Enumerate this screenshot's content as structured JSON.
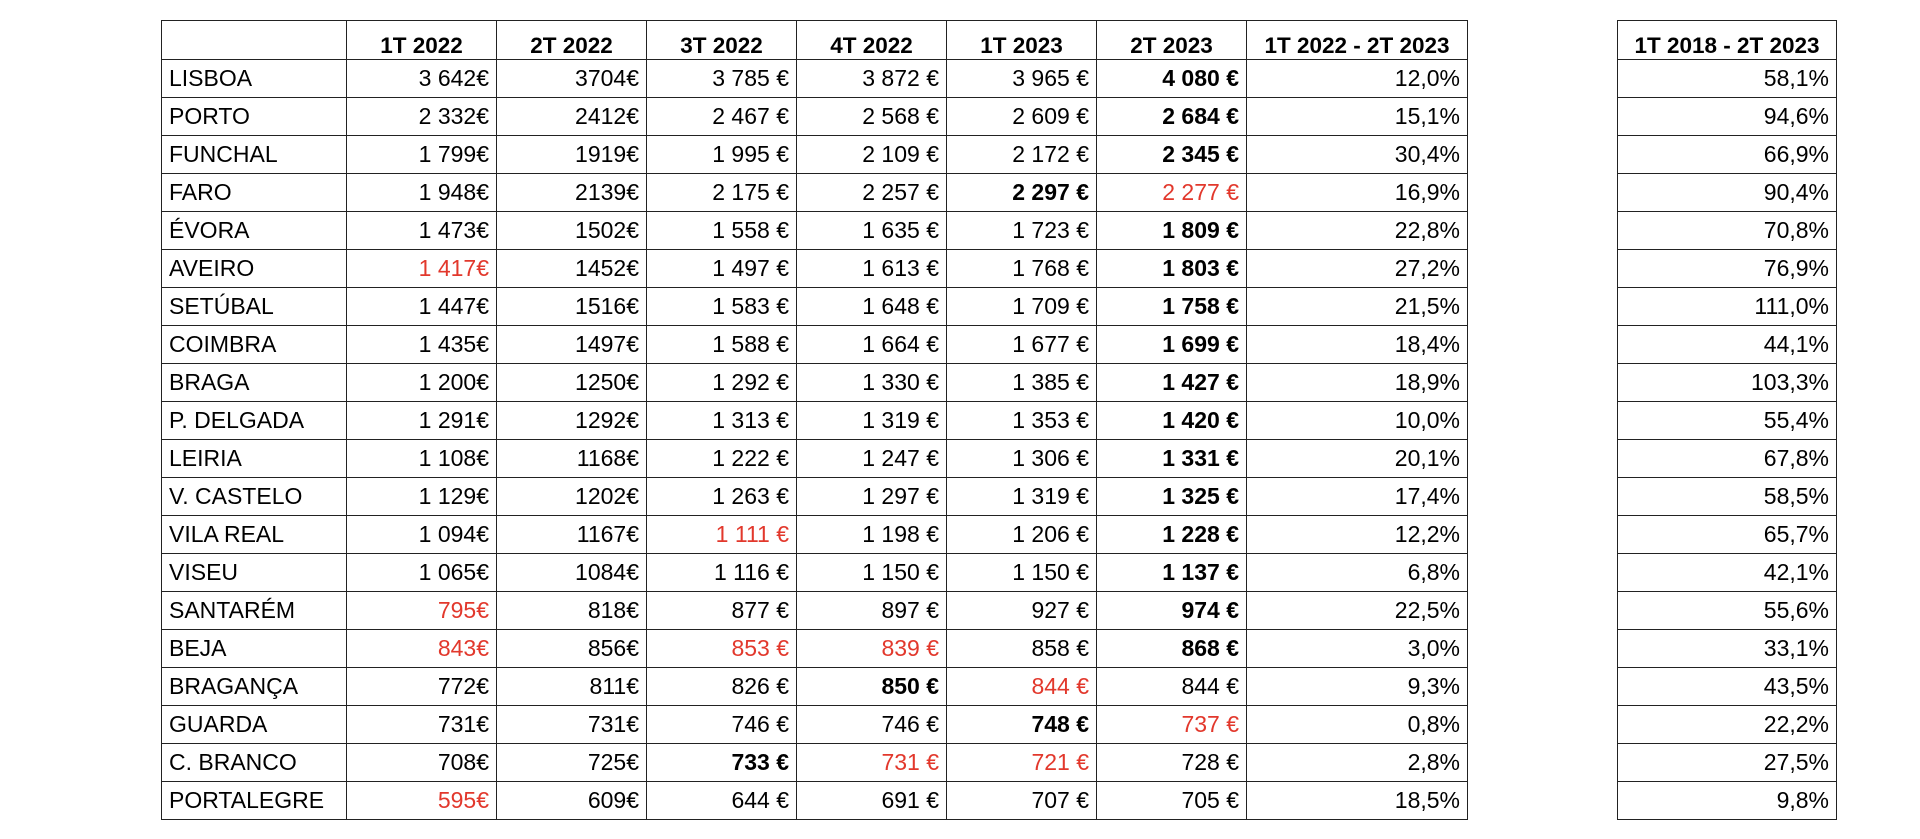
{
  "colors": {
    "red_text": "#e2382c",
    "text": "#000000",
    "border": "#222222"
  },
  "main_table": {
    "headers": [
      "",
      "1T 2022",
      "2T 2022",
      "3T 2022",
      "4T 2022",
      "1T 2023",
      "2T 2023",
      "1T 2022 - 2T 2023"
    ],
    "rows": [
      {
        "city": "LISBOA",
        "values": [
          "3 642€",
          "3704€",
          "3 785 €",
          "3 872 €",
          "3 965 €",
          "4 080 €",
          "12,0%"
        ],
        "bold": [
          5
        ],
        "red": []
      },
      {
        "city": "PORTO",
        "values": [
          "2 332€",
          "2412€",
          "2 467 €",
          "2 568 €",
          "2 609 €",
          "2 684 €",
          "15,1%"
        ],
        "bold": [
          5
        ],
        "red": []
      },
      {
        "city": "FUNCHAL",
        "values": [
          "1 799€",
          "1919€",
          "1 995 €",
          "2 109 €",
          "2 172 €",
          "2 345 €",
          "30,4%"
        ],
        "bold": [
          5
        ],
        "red": []
      },
      {
        "city": "FARO",
        "values": [
          "1 948€",
          "2139€",
          "2 175 €",
          "2 257 €",
          "2 297 €",
          "2 277 €",
          "16,9%"
        ],
        "bold": [
          4
        ],
        "red": [
          5
        ]
      },
      {
        "city": "ÉVORA",
        "values": [
          "1 473€",
          "1502€",
          "1 558 €",
          "1 635 €",
          "1 723 €",
          "1 809 €",
          "22,8%"
        ],
        "bold": [
          5
        ],
        "red": []
      },
      {
        "city": "AVEIRO",
        "values": [
          "1 417€",
          "1452€",
          "1 497 €",
          "1 613 €",
          "1 768 €",
          "1 803 €",
          "27,2%"
        ],
        "bold": [
          5
        ],
        "red": [
          0
        ]
      },
      {
        "city": "SETÚBAL",
        "values": [
          "1 447€",
          "1516€",
          "1 583 €",
          "1 648 €",
          "1 709 €",
          "1 758 €",
          "21,5%"
        ],
        "bold": [
          5
        ],
        "red": []
      },
      {
        "city": "COIMBRA",
        "values": [
          "1 435€",
          "1497€",
          "1 588 €",
          "1 664 €",
          "1 677 €",
          "1 699 €",
          "18,4%"
        ],
        "bold": [
          5
        ],
        "red": []
      },
      {
        "city": "BRAGA",
        "values": [
          "1 200€",
          "1250€",
          "1 292 €",
          "1 330 €",
          "1 385 €",
          "1 427 €",
          "18,9%"
        ],
        "bold": [
          5
        ],
        "red": []
      },
      {
        "city": "P. DELGADA",
        "values": [
          "1 291€",
          "1292€",
          "1 313 €",
          "1 319 €",
          "1 353 €",
          "1 420 €",
          "10,0%"
        ],
        "bold": [
          5
        ],
        "red": []
      },
      {
        "city": "LEIRIA",
        "values": [
          "1 108€",
          "1168€",
          "1 222 €",
          "1 247 €",
          "1 306 €",
          "1 331 €",
          "20,1%"
        ],
        "bold": [
          5
        ],
        "red": []
      },
      {
        "city": "V. CASTELO",
        "values": [
          "1 129€",
          "1202€",
          "1 263 €",
          "1 297 €",
          "1 319 €",
          "1 325 €",
          "17,4%"
        ],
        "bold": [
          5
        ],
        "red": []
      },
      {
        "city": "VILA REAL",
        "values": [
          "1 094€",
          "1167€",
          "1 111 €",
          "1 198 €",
          "1 206 €",
          "1 228 €",
          "12,2%"
        ],
        "bold": [
          5
        ],
        "red": [
          2
        ]
      },
      {
        "city": "VISEU",
        "values": [
          "1 065€",
          "1084€",
          "1 116 €",
          "1 150 €",
          "1 150 €",
          "1 137 €",
          "6,8%"
        ],
        "bold": [
          5
        ],
        "red": []
      },
      {
        "city": "SANTARÉM",
        "values": [
          "795€",
          "818€",
          "877 €",
          "897 €",
          "927 €",
          "974 €",
          "22,5%"
        ],
        "bold": [
          5
        ],
        "red": [
          0
        ]
      },
      {
        "city": "BEJA",
        "values": [
          "843€",
          "856€",
          "853 €",
          "839 €",
          "858 €",
          "868 €",
          "3,0%"
        ],
        "bold": [
          5
        ],
        "red": [
          0,
          2,
          3
        ]
      },
      {
        "city": "BRAGANÇA",
        "values": [
          "772€",
          "811€",
          "826 €",
          "850 €",
          "844 €",
          "844 €",
          "9,3%"
        ],
        "bold": [
          3
        ],
        "red": [
          4
        ]
      },
      {
        "city": "GUARDA",
        "values": [
          "731€",
          "731€",
          "746 €",
          "746 €",
          "748 €",
          "737 €",
          "0,8%"
        ],
        "bold": [
          4
        ],
        "red": [
          5
        ]
      },
      {
        "city": "C. BRANCO",
        "values": [
          "708€",
          "725€",
          "733 €",
          "731 €",
          "721 €",
          "728 €",
          "2,8%"
        ],
        "bold": [
          2
        ],
        "red": [
          3,
          4
        ]
      },
      {
        "city": "PORTALEGRE",
        "values": [
          "595€",
          "609€",
          "644 €",
          "691 €",
          "707 €",
          "705 €",
          "18,5%"
        ],
        "bold": [],
        "red": [
          0
        ]
      }
    ]
  },
  "side_table": {
    "header": "1T 2018 - 2T 2023",
    "values": [
      "58,1%",
      "94,6%",
      "66,9%",
      "90,4%",
      "70,8%",
      "76,9%",
      "111,0%",
      "44,1%",
      "103,3%",
      "55,4%",
      "67,8%",
      "58,5%",
      "65,7%",
      "42,1%",
      "55,6%",
      "33,1%",
      "43,5%",
      "22,2%",
      "27,5%",
      "9,8%"
    ]
  }
}
